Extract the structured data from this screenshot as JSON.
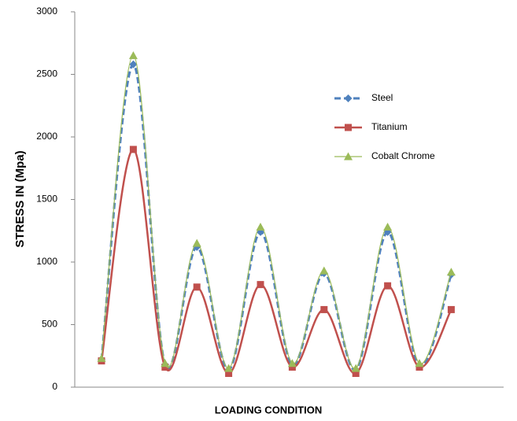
{
  "chart_data": {
    "type": "line",
    "y_label": "STRESS IN (Mpa)",
    "x_label": "LOADING CONDITION",
    "categories": [
      null,
      null,
      null,
      null,
      null,
      null,
      null,
      null,
      null,
      null,
      null,
      null
    ],
    "series": [
      {
        "name": "Steel",
        "color": "#4f81bd",
        "marker": "diamond",
        "dash": true,
        "values": [
          220,
          2580,
          180,
          1120,
          140,
          1240,
          180,
          910,
          140,
          1240,
          170,
          900
        ]
      },
      {
        "name": "Titanium",
        "color": "#c0504d",
        "marker": "square",
        "dash": false,
        "values": [
          210,
          1900,
          160,
          800,
          110,
          820,
          160,
          620,
          110,
          810,
          160,
          620
        ]
      },
      {
        "name": "Cobalt Chrome",
        "color": "#9bbb59",
        "marker": "triangle",
        "dash": false,
        "values": [
          230,
          2650,
          190,
          1150,
          150,
          1280,
          190,
          930,
          150,
          1280,
          190,
          920
        ]
      }
    ],
    "ylim": [
      0,
      3000
    ],
    "yticks": [
      0,
      500,
      1000,
      1500,
      2000,
      2500,
      3000
    ],
    "grid": false,
    "smooth": true,
    "legend": "right"
  }
}
